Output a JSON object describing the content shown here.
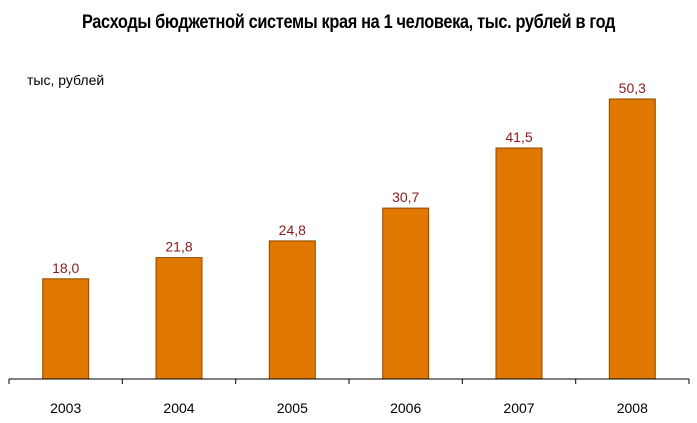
{
  "chart_data": {
    "type": "bar",
    "title": "Расходы бюджетной системы края на 1 человека, тыс. рублей в год",
    "ylabel": "тыс, рублей",
    "categories": [
      "2003",
      "2004",
      "2005",
      "2006",
      "2007",
      "2008"
    ],
    "values": [
      18.0,
      21.8,
      24.8,
      30.7,
      41.5,
      50.3
    ],
    "value_labels": [
      "18,0",
      "21,8",
      "24,8",
      "30,7",
      "41,5",
      "50,3"
    ],
    "ylim": [
      0,
      50.3
    ],
    "grid": false,
    "colors": {
      "bar": "#E07800",
      "bar_stroke": "#8a4a00",
      "value_label": "#8B1A1A",
      "axis": "#000000"
    }
  }
}
